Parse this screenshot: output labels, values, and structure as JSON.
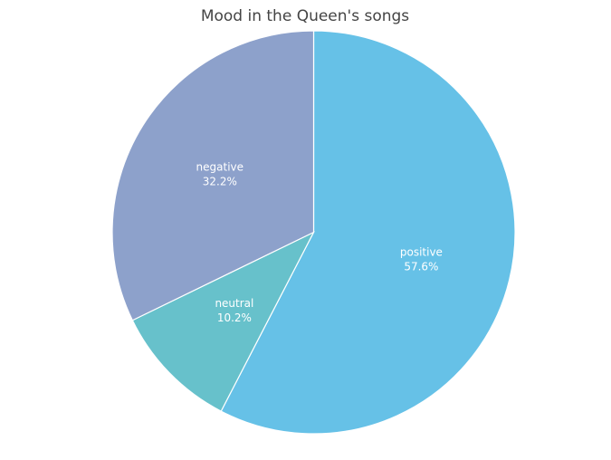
{
  "chart_data": {
    "type": "pie",
    "title": "Mood in the Queen's songs",
    "start": "top",
    "direction": "clockwise",
    "slices": [
      {
        "label": "positive",
        "value": 57.6,
        "percent_text": "57.6%",
        "color": "#66c1e7"
      },
      {
        "label": "neutral",
        "value": 10.2,
        "percent_text": "10.2%",
        "color": "#67c1cb"
      },
      {
        "label": "negative",
        "value": 32.2,
        "percent_text": "32.2%",
        "color": "#8da1cb"
      }
    ]
  }
}
